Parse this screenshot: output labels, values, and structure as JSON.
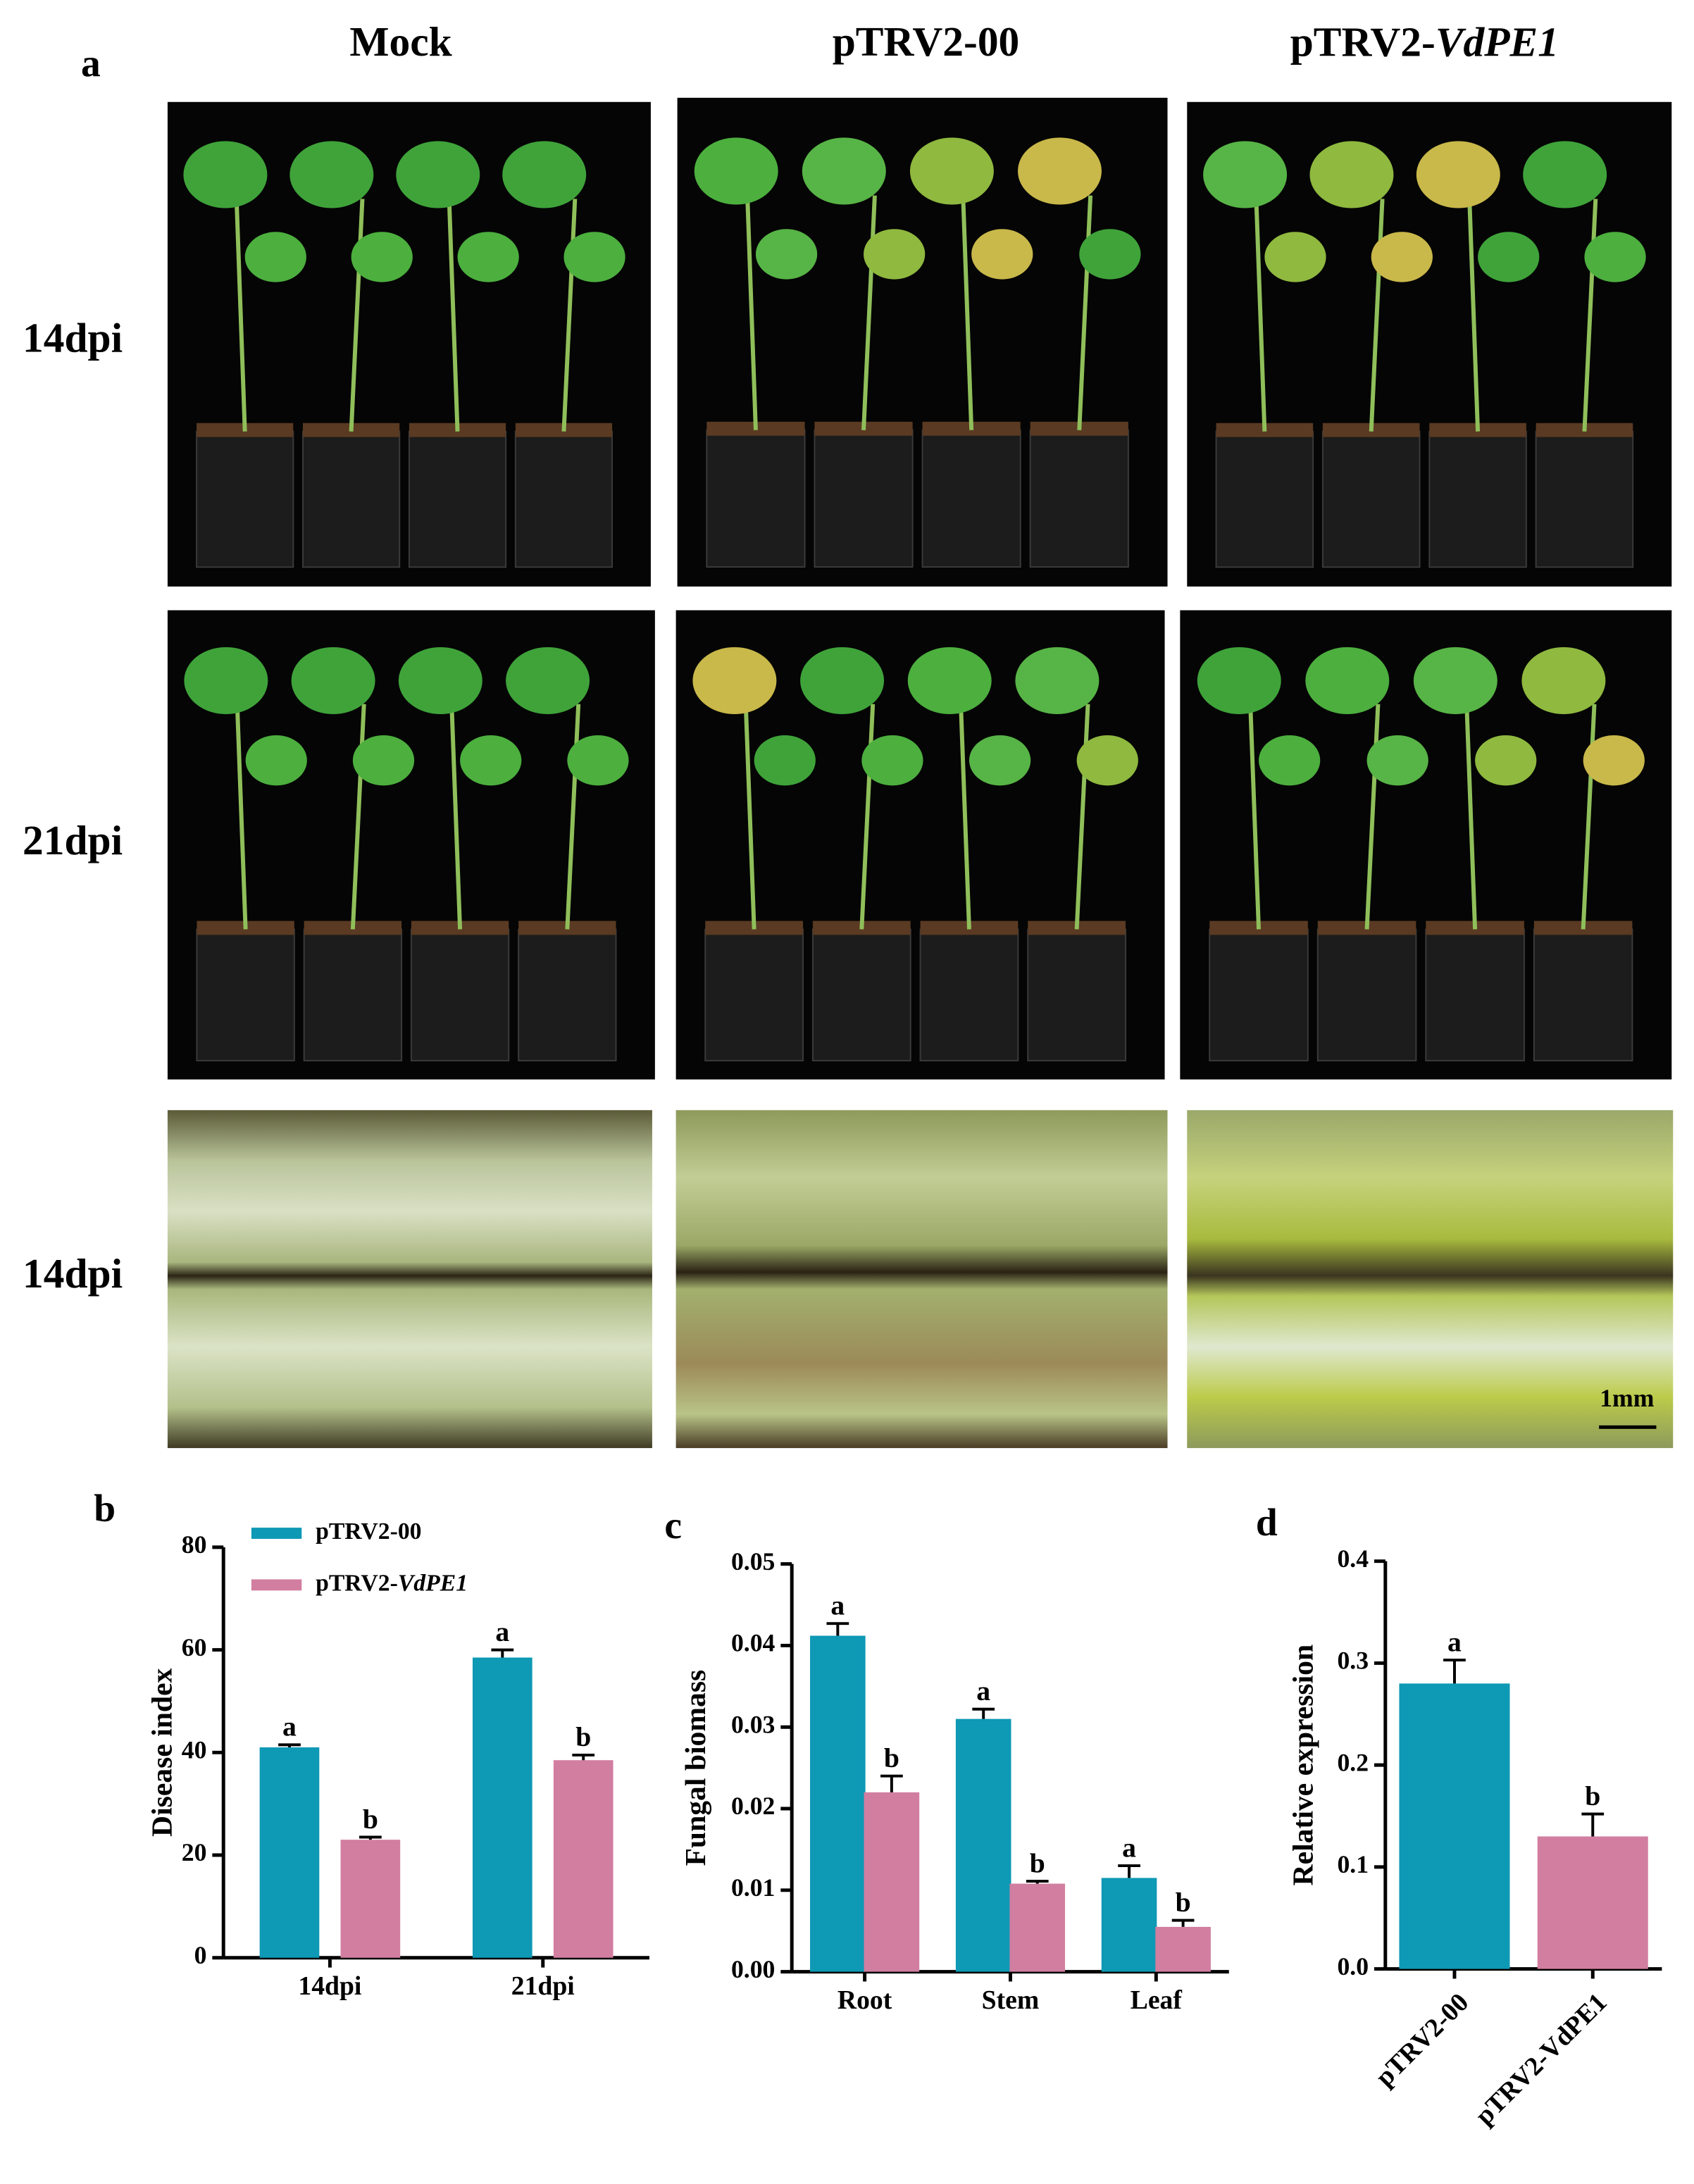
{
  "figure": {
    "panel_label": "a",
    "column_headers": [
      "Mock",
      "pTRV2-00",
      [
        "pTRV2-",
        "VdPE1"
      ]
    ],
    "row_labels": [
      "14dpi",
      "21dpi",
      "14dpi"
    ],
    "scale_bar": "1mm"
  },
  "chart_data": [
    {
      "type": "bar",
      "panel_label": "b",
      "y_label": "Disease index",
      "categories": [
        "14dpi",
        "21dpi"
      ],
      "series": [
        {
          "name": "pTRV2-00",
          "color": "#0e99b5",
          "values": [
            41,
            58.5
          ],
          "errors": [
            0.5,
            1.5
          ],
          "letters": [
            "a",
            "a"
          ]
        },
        {
          "name": [
            "pTRV2-",
            "VdPE1"
          ],
          "color": "#d27ea0",
          "values": [
            23,
            38.5
          ],
          "errors": [
            0.5,
            1
          ],
          "letters": [
            "b",
            "b"
          ]
        }
      ],
      "ylim": [
        0,
        80
      ],
      "yticks": [
        0,
        20,
        40,
        60,
        80
      ],
      "legend": "top-left"
    },
    {
      "type": "bar",
      "panel_label": "c",
      "y_label": "Fungal biomass",
      "categories": [
        "Root",
        "Stem",
        "Leaf"
      ],
      "series": [
        {
          "color": "#0e99b5",
          "values": [
            0.0412,
            0.031,
            0.0115
          ],
          "errors": [
            0.0015,
            0.0012,
            0.0015
          ],
          "letters": [
            "a",
            "a",
            "a"
          ]
        },
        {
          "color": "#d27ea0",
          "values": [
            0.022,
            0.0108,
            0.0055
          ],
          "errors": [
            0.002,
            0.0003,
            0.0008
          ],
          "letters": [
            "b",
            "b",
            "b"
          ]
        }
      ],
      "ylim": [
        0,
        0.05
      ],
      "yticks": [
        {
          "value": 0,
          "label": "0.00"
        },
        0.01,
        0.02,
        0.03,
        0.04,
        0.05
      ]
    },
    {
      "type": "bar",
      "panel_label": "d",
      "y_label": "Relative expression",
      "categories": [
        "pTRV2-00",
        "pTRV2-VdPE1"
      ],
      "values": [
        0.28,
        0.13
      ],
      "errors": [
        0.023,
        0.022
      ],
      "letters": [
        "a",
        "b"
      ],
      "colors": [
        "#0e99b5",
        "#d27ea0"
      ],
      "ylim": [
        0,
        0.4
      ],
      "yticks": [
        {
          "value": 0,
          "label": "0.0"
        },
        0.1,
        0.2,
        0.3,
        0.4
      ]
    }
  ]
}
